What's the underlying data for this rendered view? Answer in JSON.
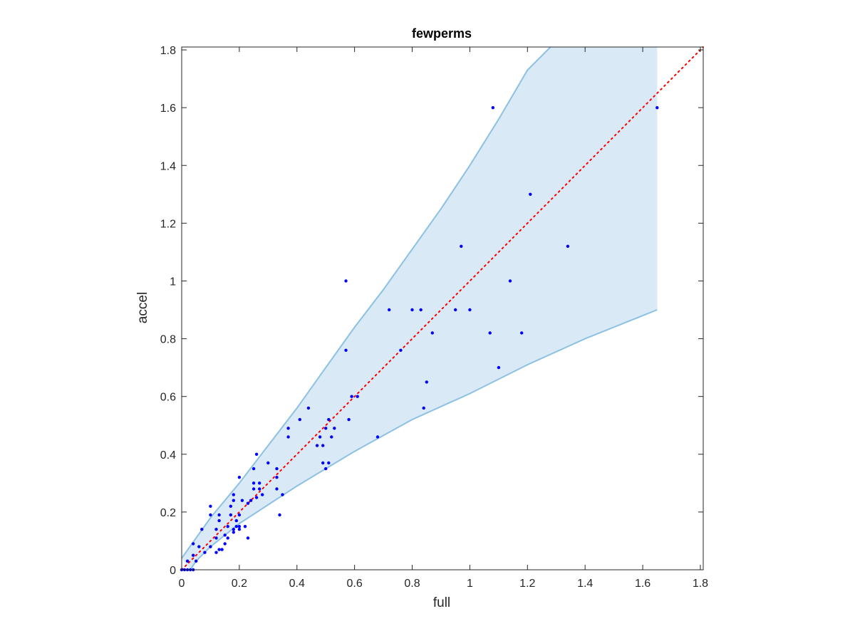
{
  "chart_data": {
    "type": "scatter",
    "title": "fewperms",
    "xlabel": "full",
    "ylabel": "accel",
    "xlim": [
      0,
      1.81
    ],
    "ylim": [
      0,
      1.81
    ],
    "xticks": [
      0,
      0.2,
      0.4,
      0.6,
      0.8,
      1,
      1.2,
      1.4,
      1.6,
      1.8
    ],
    "yticks": [
      0,
      0.2,
      0.4,
      0.6,
      0.8,
      1,
      1.2,
      1.4,
      1.6,
      1.8
    ],
    "xtick_labels": [
      "0",
      "0.2",
      "0.4",
      "0.6",
      "0.8",
      "1",
      "1.2",
      "1.4",
      "1.6",
      "1.8"
    ],
    "ytick_labels": [
      "0",
      "0.2",
      "0.4",
      "0.6",
      "0.8",
      "1",
      "1.2",
      "1.4",
      "1.6",
      "1.8"
    ],
    "grid": false,
    "colors": {
      "points": "#0000ff",
      "band_fill": "#d9e9f5",
      "band_edge": "#8cc1e3",
      "reference_line": "#ff0000",
      "axes": "#262626"
    },
    "band": {
      "upper": [
        [
          0,
          0.04
        ],
        [
          0.1,
          0.18
        ],
        [
          0.2,
          0.3
        ],
        [
          0.3,
          0.43
        ],
        [
          0.4,
          0.56
        ],
        [
          0.5,
          0.7
        ],
        [
          0.6,
          0.84
        ],
        [
          0.7,
          0.97
        ],
        [
          0.8,
          1.11
        ],
        [
          0.9,
          1.25
        ],
        [
          1.0,
          1.4
        ],
        [
          1.1,
          1.56
        ],
        [
          1.2,
          1.73
        ],
        [
          1.28,
          1.81
        ],
        [
          1.65,
          1.81
        ]
      ],
      "lower": [
        [
          1.65,
          0.9
        ],
        [
          1.4,
          0.8
        ],
        [
          1.2,
          0.71
        ],
        [
          1.0,
          0.61
        ],
        [
          0.8,
          0.52
        ],
        [
          0.6,
          0.41
        ],
        [
          0.4,
          0.29
        ],
        [
          0.2,
          0.16
        ],
        [
          0.1,
          0.08
        ],
        [
          0.05,
          0.03
        ],
        [
          0.03,
          0
        ]
      ]
    },
    "reference_line": {
      "x": [
        0,
        1.81
      ],
      "y": [
        0,
        1.81
      ],
      "style": "dotted"
    },
    "points": [
      [
        0.0,
        0.0
      ],
      [
        0.01,
        0.0
      ],
      [
        0.02,
        0.0
      ],
      [
        0.03,
        0.0
      ],
      [
        0.04,
        0.0
      ],
      [
        0.02,
        0.03
      ],
      [
        0.04,
        0.05
      ],
      [
        0.05,
        0.03
      ],
      [
        0.04,
        0.09
      ],
      [
        0.06,
        0.08
      ],
      [
        0.07,
        0.14
      ],
      [
        0.08,
        0.06
      ],
      [
        0.1,
        0.08
      ],
      [
        0.1,
        0.19
      ],
      [
        0.1,
        0.22
      ],
      [
        0.12,
        0.06
      ],
      [
        0.12,
        0.11
      ],
      [
        0.12,
        0.14
      ],
      [
        0.13,
        0.17
      ],
      [
        0.13,
        0.19
      ],
      [
        0.13,
        0.07
      ],
      [
        0.14,
        0.07
      ],
      [
        0.15,
        0.09
      ],
      [
        0.15,
        0.12
      ],
      [
        0.16,
        0.15
      ],
      [
        0.16,
        0.11
      ],
      [
        0.17,
        0.19
      ],
      [
        0.17,
        0.22
      ],
      [
        0.18,
        0.26
      ],
      [
        0.18,
        0.24
      ],
      [
        0.18,
        0.14
      ],
      [
        0.18,
        0.13
      ],
      [
        0.19,
        0.15
      ],
      [
        0.19,
        0.17
      ],
      [
        0.2,
        0.19
      ],
      [
        0.2,
        0.14
      ],
      [
        0.2,
        0.32
      ],
      [
        0.2,
        0.15
      ],
      [
        0.21,
        0.24
      ],
      [
        0.22,
        0.15
      ],
      [
        0.23,
        0.11
      ],
      [
        0.23,
        0.23
      ],
      [
        0.24,
        0.24
      ],
      [
        0.25,
        0.28
      ],
      [
        0.25,
        0.3
      ],
      [
        0.25,
        0.35
      ],
      [
        0.26,
        0.25
      ],
      [
        0.26,
        0.4
      ],
      [
        0.27,
        0.28
      ],
      [
        0.27,
        0.3
      ],
      [
        0.28,
        0.26
      ],
      [
        0.3,
        0.37
      ],
      [
        0.33,
        0.28
      ],
      [
        0.33,
        0.32
      ],
      [
        0.33,
        0.35
      ],
      [
        0.34,
        0.19
      ],
      [
        0.35,
        0.26
      ],
      [
        0.37,
        0.49
      ],
      [
        0.37,
        0.46
      ],
      [
        0.41,
        0.52
      ],
      [
        0.44,
        0.56
      ],
      [
        0.47,
        0.43
      ],
      [
        0.48,
        0.46
      ],
      [
        0.49,
        0.37
      ],
      [
        0.49,
        0.43
      ],
      [
        0.5,
        0.35
      ],
      [
        0.5,
        0.49
      ],
      [
        0.51,
        0.52
      ],
      [
        0.51,
        0.37
      ],
      [
        0.52,
        0.46
      ],
      [
        0.53,
        0.49
      ],
      [
        0.57,
        0.76
      ],
      [
        0.57,
        1.0
      ],
      [
        0.58,
        0.52
      ],
      [
        0.59,
        0.6
      ],
      [
        0.61,
        0.6
      ],
      [
        0.68,
        0.46
      ],
      [
        0.72,
        0.9
      ],
      [
        0.76,
        0.76
      ],
      [
        0.8,
        0.9
      ],
      [
        0.83,
        0.9
      ],
      [
        0.84,
        0.56
      ],
      [
        0.85,
        0.65
      ],
      [
        0.87,
        0.82
      ],
      [
        0.95,
        0.9
      ],
      [
        0.97,
        1.12
      ],
      [
        1.0,
        0.9
      ],
      [
        1.07,
        0.82
      ],
      [
        1.08,
        1.6
      ],
      [
        1.1,
        0.7
      ],
      [
        1.14,
        1.0
      ],
      [
        1.18,
        0.82
      ],
      [
        1.21,
        1.3
      ],
      [
        1.34,
        1.12
      ],
      [
        1.65,
        1.6
      ]
    ]
  }
}
